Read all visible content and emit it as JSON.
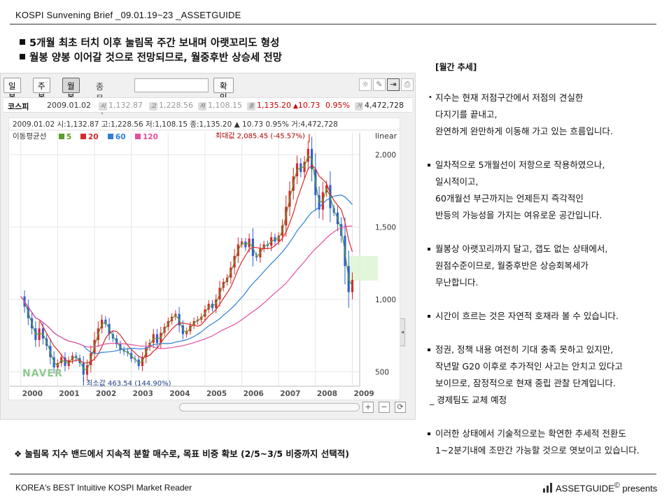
{
  "header": {
    "title": "KOSPI  Sunvening Brief _09.01.19~23 _ASSETGUIDE"
  },
  "headlines": [
    "5개월 최초 터치 이후 눌림목 주간 보내며 아랫꼬리도 형성",
    "월봉 양봉 이어갈 것으로 전망되므로, 월중후반 상승세 전망"
  ],
  "toolbar": {
    "day": "일봉",
    "week": "주봉",
    "month": "월봉",
    "compare_label": "종목비교",
    "compare_value": "",
    "ok": "확인"
  },
  "toolicons": [
    "bulb-icon",
    "pen-icon",
    "expand-icon",
    "print-icon"
  ],
  "infobar": {
    "name": "코스피",
    "date": "2009.01.02",
    "tag_open": "시",
    "open": "1,132.87",
    "tag_high": "고",
    "high": "1,228.56",
    "tag_low": "저",
    "low": "1,108.15",
    "tag_close": "종",
    "close": "1,135.20",
    "change": "10.73",
    "change_pct": "0.95%",
    "tag_vol": "거",
    "volume": "4,472,728"
  },
  "chart_data": {
    "type": "candlestick",
    "info_line": "2009.01.02 시:1,132.87 고:1,228.56 저:1,108.15 종:1,135.20 ▲ 10.73 0.95% 거:4,472,728",
    "ma_label": "이동평균선",
    "ma_periods": [
      "5",
      "20",
      "60",
      "120"
    ],
    "ma_colors": [
      "#5a9e2f",
      "#d42a2a",
      "#2f7fd4",
      "#e24fa0"
    ],
    "scale": "linear",
    "y_ticks": [
      500,
      1000,
      1500,
      2000
    ],
    "y_tick_labels": [
      "500",
      "1,000",
      "1,500",
      "2,000"
    ],
    "ylim": [
      400,
      2150
    ],
    "x_ticks": [
      "2000",
      "2001",
      "2002",
      "2003",
      "2004",
      "2005",
      "2006",
      "2007",
      "2008",
      "2009"
    ],
    "xlim": [
      1999.7,
      2009.2
    ],
    "max_annotation": "최대값 2,085.45 (-45.57%)",
    "min_annotation": "최소값 463.54 (144.90%)",
    "max_point": {
      "t": 2007.83,
      "v": 2085.45
    },
    "min_point": {
      "t": 2001.7,
      "v": 463.54
    },
    "watermark": "NAVER",
    "monthly_close": [
      [
        2000.0,
        1020
      ],
      [
        2000.1,
        950
      ],
      [
        2000.2,
        870
      ],
      [
        2000.3,
        800
      ],
      [
        2000.4,
        720
      ],
      [
        2000.5,
        800
      ],
      [
        2000.6,
        730
      ],
      [
        2000.7,
        680
      ],
      [
        2000.8,
        600
      ],
      [
        2000.9,
        530
      ],
      [
        2001.0,
        560
      ],
      [
        2001.1,
        600
      ],
      [
        2001.2,
        540
      ],
      [
        2001.3,
        580
      ],
      [
        2001.4,
        610
      ],
      [
        2001.5,
        595
      ],
      [
        2001.6,
        560
      ],
      [
        2001.7,
        480
      ],
      [
        2001.8,
        545
      ],
      [
        2001.9,
        630
      ],
      [
        2002.0,
        720
      ],
      [
        2002.1,
        800
      ],
      [
        2002.2,
        860
      ],
      [
        2002.3,
        830
      ],
      [
        2002.4,
        760
      ],
      [
        2002.5,
        730
      ],
      [
        2002.6,
        690
      ],
      [
        2002.7,
        650
      ],
      [
        2002.8,
        640
      ],
      [
        2002.9,
        630
      ],
      [
        2003.0,
        590
      ],
      [
        2003.1,
        585
      ],
      [
        2003.2,
        540
      ],
      [
        2003.3,
        600
      ],
      [
        2003.4,
        670
      ],
      [
        2003.5,
        700
      ],
      [
        2003.6,
        760
      ],
      [
        2003.7,
        700
      ],
      [
        2003.8,
        770
      ],
      [
        2003.9,
        810
      ],
      [
        2004.0,
        850
      ],
      [
        2004.1,
        880
      ],
      [
        2004.2,
        900
      ],
      [
        2004.3,
        820
      ],
      [
        2004.4,
        760
      ],
      [
        2004.5,
        780
      ],
      [
        2004.6,
        820
      ],
      [
        2004.7,
        850
      ],
      [
        2004.8,
        860
      ],
      [
        2004.9,
        880
      ],
      [
        2005.0,
        930
      ],
      [
        2005.1,
        970
      ],
      [
        2005.2,
        940
      ],
      [
        2005.3,
        1000
      ],
      [
        2005.4,
        1080
      ],
      [
        2005.5,
        1120
      ],
      [
        2005.6,
        1150
      ],
      [
        2005.7,
        1220
      ],
      [
        2005.8,
        1300
      ],
      [
        2005.9,
        1380
      ],
      [
        2006.0,
        1400
      ],
      [
        2006.1,
        1360
      ],
      [
        2006.2,
        1420
      ],
      [
        2006.3,
        1300
      ],
      [
        2006.4,
        1290
      ],
      [
        2006.5,
        1350
      ],
      [
        2006.6,
        1380
      ],
      [
        2006.7,
        1370
      ],
      [
        2006.8,
        1430
      ],
      [
        2006.9,
        1400
      ],
      [
        2007.0,
        1440
      ],
      [
        2007.1,
        1510
      ],
      [
        2007.2,
        1640
      ],
      [
        2007.3,
        1750
      ],
      [
        2007.4,
        1850
      ],
      [
        2007.5,
        1940
      ],
      [
        2007.6,
        1880
      ],
      [
        2007.7,
        1950
      ],
      [
        2007.8,
        2040
      ],
      [
        2007.9,
        1900
      ],
      [
        2008.0,
        1720
      ],
      [
        2008.1,
        1620
      ],
      [
        2008.2,
        1740
      ],
      [
        2008.3,
        1790
      ],
      [
        2008.4,
        1630
      ],
      [
        2008.5,
        1600
      ],
      [
        2008.6,
        1520
      ],
      [
        2008.7,
        1440
      ],
      [
        2008.8,
        1230
      ],
      [
        2008.9,
        1050
      ],
      [
        2009.0,
        1135
      ]
    ]
  },
  "controls": {
    "zoom_in": "+",
    "zoom_out": "−",
    "reset": "⟳"
  },
  "right": {
    "title": "[월간 추세]",
    "b1": [
      "지수는 현재 저점구간에서 저점의 견실한",
      "다지기를 끝내고,",
      "완연하게 완만하게 이동해 가고 있는 흐름입니다."
    ],
    "b2": [
      "일차적으로 5개월선이 저항으로 작용하였으나,",
      "일시적이고,",
      "60개월선 부근까지는 언제든지 즉각적인",
      "반등의 가능성을 가지는 여유로운 공간입니다."
    ],
    "b3": [
      "월봉상 아랫꼬리까지 달고, 갭도 없는 상태에서,",
      "원점수준이므로, 월중후반은 상승회복세가",
      "무난합니다."
    ],
    "b4": [
      "시간이 흐르는 것은 자연적 호재라 볼 수 있습니다."
    ],
    "b5": [
      "정권, 정책 내용 여전히 기대 충족 못하고 있지만,",
      "작년말 G20 이후로 추가적인 사고는 안치고 있다고",
      "보이므로, 잠정적으로 현재 중립 관찰 단계입니다.",
      "_ 경제팀도 교체 예정"
    ],
    "b6": [
      "이러한 상태에서 기술적으로는 확연한 추세적 전환도",
      "1~2분기내에 조만간 가능할 것으로 엿보이고 있습니다."
    ]
  },
  "bottom_note": "❖ 눌림목 지수 밴드에서 지속적 분할 매수로, 목표 비중 확보 (2/5~3/5 비중까지 선택적)",
  "footer": {
    "left": "KOREA's BEST Intuitive KOSPI Market Reader",
    "right": "ASSETGUIDE",
    "reg": "©",
    "presents": " presents"
  }
}
